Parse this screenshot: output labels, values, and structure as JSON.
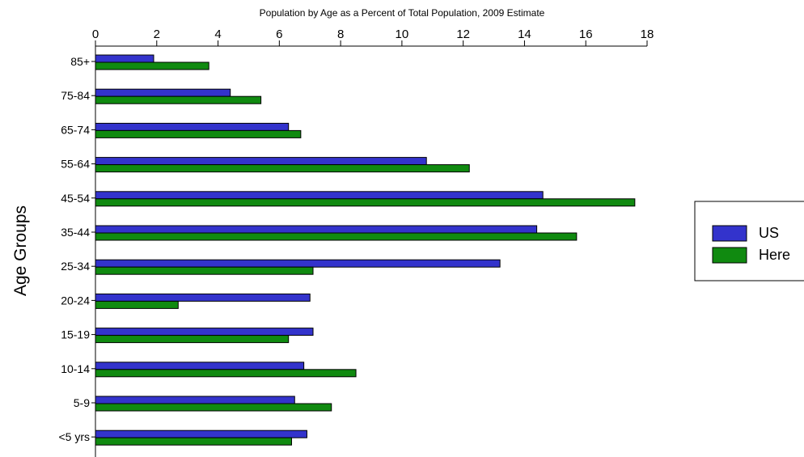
{
  "chart_data": {
    "type": "bar",
    "orientation": "horizontal",
    "title": "Population by Age as a Percent of Total Population, 2009 Estimate",
    "ylabel": "Age Groups",
    "xlabel": "",
    "xlim": [
      0,
      18
    ],
    "xticks": [
      0,
      2,
      4,
      6,
      8,
      10,
      12,
      14,
      16,
      18
    ],
    "x_axis_position": "top",
    "grid": false,
    "legend_position": "right",
    "categories": [
      "85+",
      "75-84",
      "65-74",
      "55-64",
      "45-54",
      "35-44",
      "25-34",
      "20-24",
      "15-19",
      "10-14",
      "5-9",
      "<5 yrs"
    ],
    "series": [
      {
        "name": "US",
        "color": "#3333cc",
        "values": [
          1.9,
          4.4,
          6.3,
          10.8,
          14.6,
          14.4,
          13.2,
          7.0,
          7.1,
          6.8,
          6.5,
          6.9
        ]
      },
      {
        "name": "Here",
        "color": "#108a10",
        "values": [
          3.7,
          5.4,
          6.7,
          12.2,
          17.6,
          15.7,
          7.1,
          2.7,
          6.3,
          8.5,
          7.7,
          6.4
        ]
      }
    ]
  }
}
